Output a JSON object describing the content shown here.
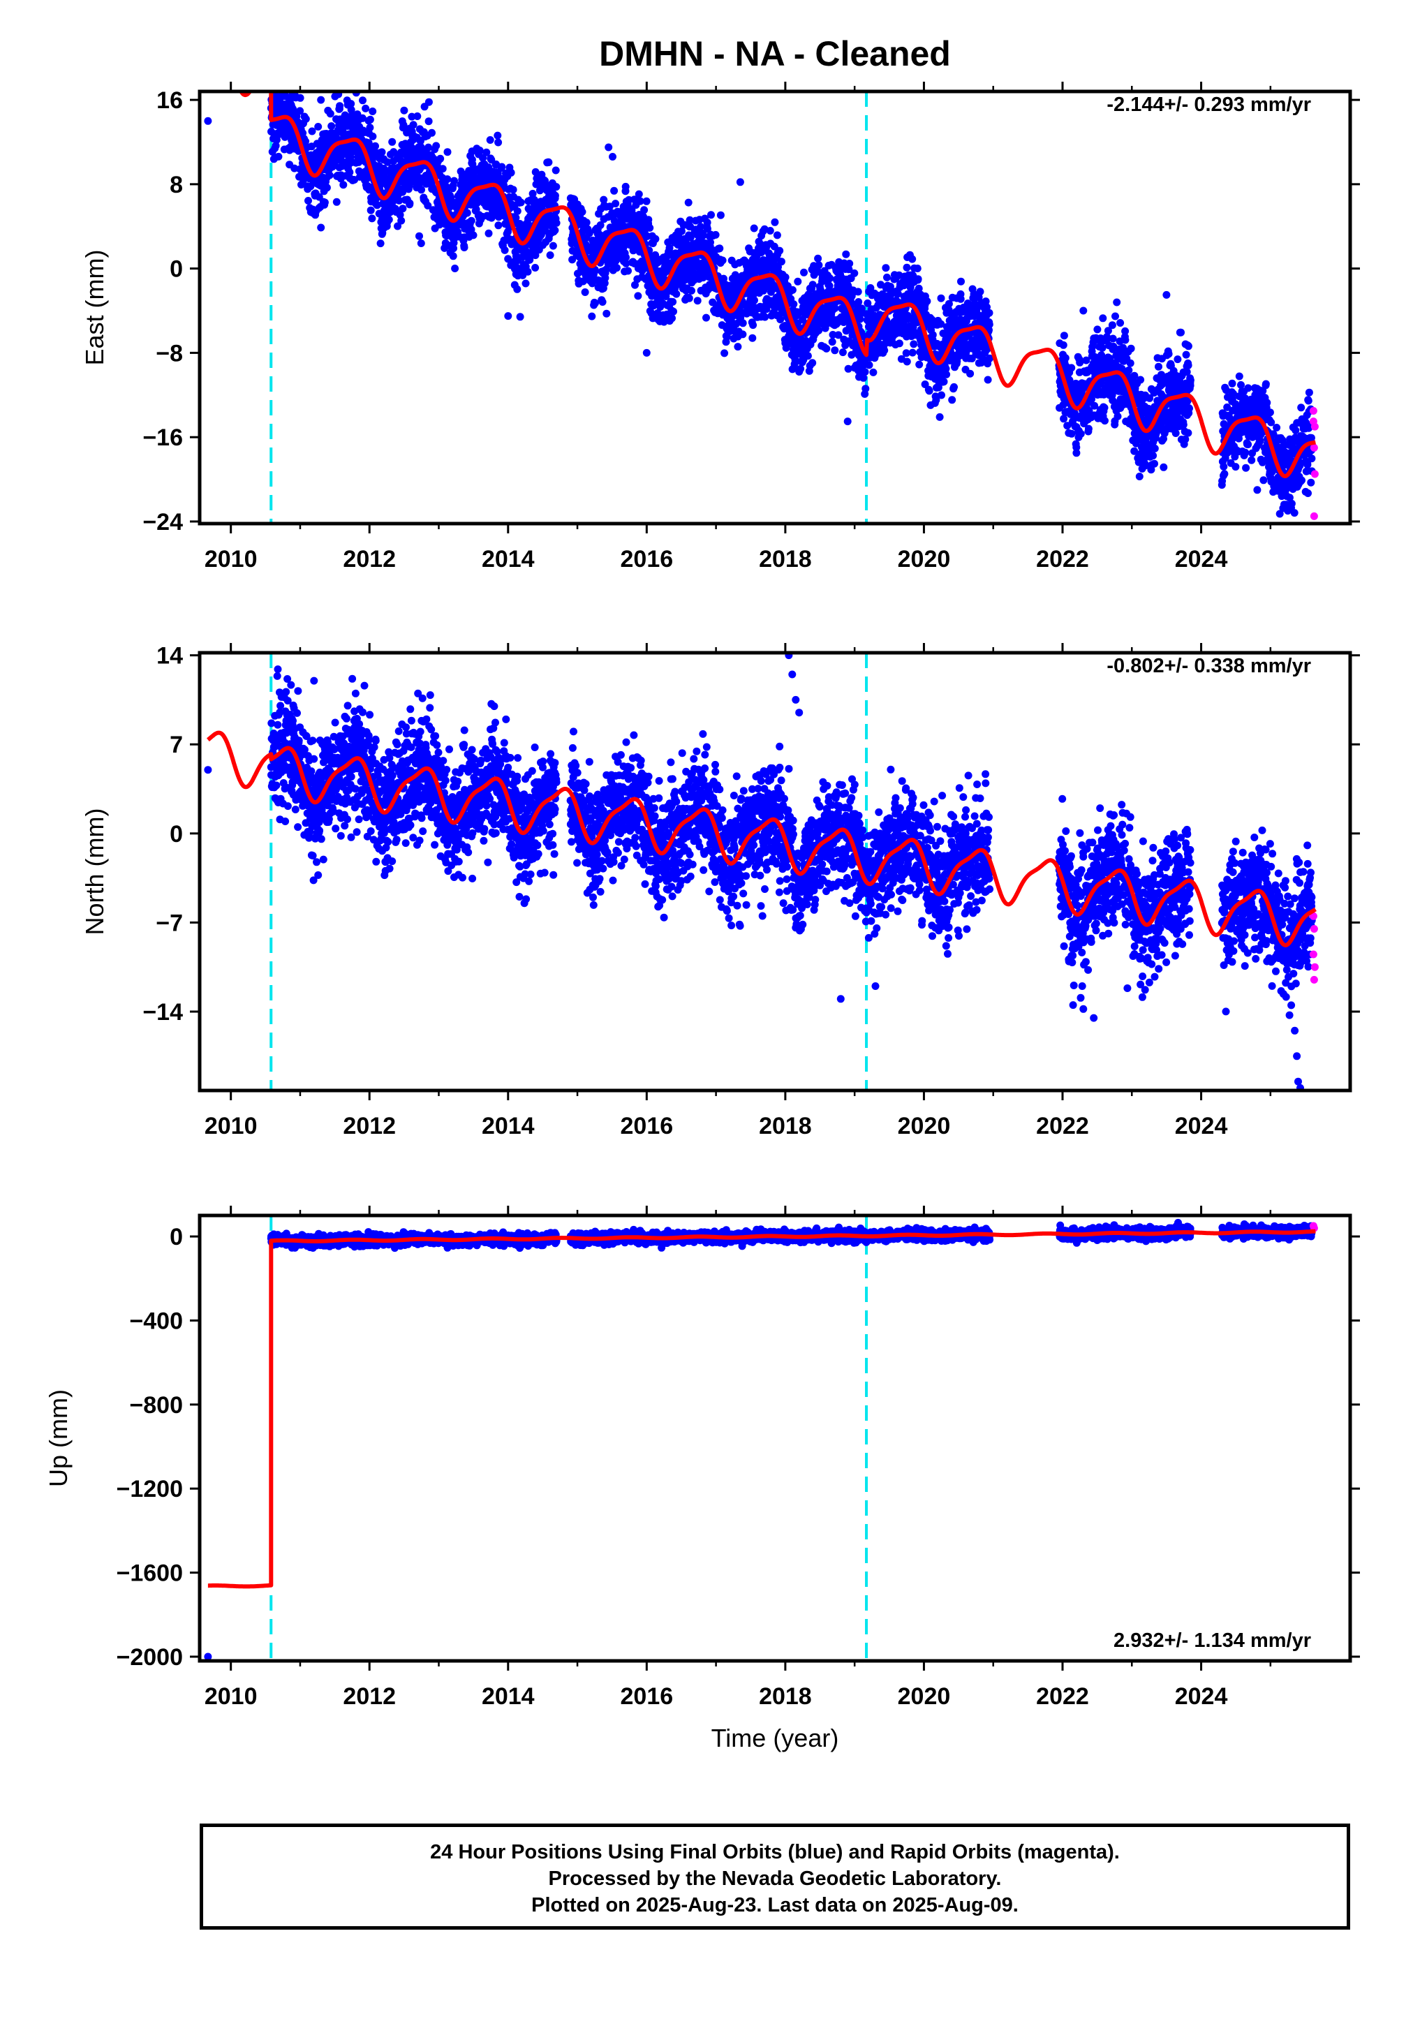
{
  "title": "DMHN  - NA - Cleaned",
  "xlabel": "Time (year)",
  "caption": [
    "24 Hour Positions Using Final Orbits (blue) and Rapid Orbits (magenta).",
    "Processed by the Nevada Geodetic Laboratory.",
    "Plotted on 2025-Aug-23. Last data on 2025-Aug-09."
  ],
  "colors": {
    "final": "#0000ff",
    "rapid": "#ff00ff",
    "model": "#ff0000",
    "offset": "#00e5ee"
  },
  "chart_data": [
    {
      "type": "scatter",
      "name": "east",
      "ylabel": "East (mm)",
      "rate_label": "-2.144+/- 0.293 mm/yr",
      "xlim": [
        2009.55,
        2026.15
      ],
      "ylim": [
        -24.2,
        16.8
      ],
      "xticks": [
        2010,
        2012,
        2014,
        2016,
        2018,
        2020,
        2022,
        2024
      ],
      "xtick_labels": [
        "2010",
        "2012",
        "2014",
        "2016",
        "2018",
        "2020",
        "2022",
        "2024"
      ],
      "yticks": [
        16,
        8,
        0,
        -8,
        -16,
        -24
      ],
      "ytick_labels": [
        "16",
        "8",
        "0",
        "−8",
        "−16",
        "−24"
      ],
      "offsets": [
        2010.58,
        2019.17
      ],
      "data_segments": [
        [
          2010.58,
          2014.7
        ],
        [
          2014.9,
          2020.95
        ],
        [
          2021.95,
          2023.85
        ],
        [
          2024.3,
          2025.6
        ]
      ],
      "first_point": [
        2009.67,
        14.0
      ],
      "model": {
        "t0": 2018.0,
        "intercept": -3.0,
        "rate": -2.144,
        "annual_amp": 2.2,
        "annual_phase": 2010.47,
        "semiannual_amp": 0.6,
        "semiannual_phase": 2010.3,
        "pre_offset_shift": 5.5
      },
      "scatter_sd": 2.0,
      "outliers": [
        [
          2011.3,
          16.0
        ],
        [
          2012.5,
          15.0
        ],
        [
          2014.0,
          -4.5
        ],
        [
          2015.45,
          11.5
        ],
        [
          2016.0,
          -8.0
        ],
        [
          2017.35,
          8.2
        ],
        [
          2018.9,
          -14.5
        ],
        [
          2022.2,
          -17.5
        ],
        [
          2023.5,
          -2.5
        ],
        [
          2022.3,
          -4.0
        ]
      ],
      "rapid_points": [
        [
          2025.62,
          -13.5
        ],
        [
          2025.62,
          -14.5
        ],
        [
          2025.64,
          -15.0
        ],
        [
          2025.63,
          -17.0
        ],
        [
          2025.64,
          -19.5
        ],
        [
          2025.63,
          -23.5
        ]
      ]
    },
    {
      "type": "scatter",
      "name": "north",
      "ylabel": "North (mm)",
      "rate_label": "-0.802+/- 0.338 mm/yr",
      "xlim": [
        2009.55,
        2026.15
      ],
      "ylim": [
        -20.2,
        14.2
      ],
      "xticks": [
        2010,
        2012,
        2014,
        2016,
        2018,
        2020,
        2022,
        2024
      ],
      "xtick_labels": [
        "2010",
        "2012",
        "2014",
        "2016",
        "2018",
        "2020",
        "2022",
        "2024"
      ],
      "yticks": [
        14,
        7,
        0,
        -7,
        -14
      ],
      "ytick_labels": [
        "14",
        "7",
        "0",
        "−7",
        "−14"
      ],
      "offsets": [
        2010.58,
        2019.17
      ],
      "data_segments": [
        [
          2010.58,
          2014.7
        ],
        [
          2014.9,
          2020.95
        ],
        [
          2021.95,
          2023.85
        ],
        [
          2024.3,
          2025.6
        ]
      ],
      "first_point": [
        2009.67,
        5.0
      ],
      "model": {
        "t0": 2018.0,
        "intercept": -0.8,
        "rate": -0.802,
        "annual_amp": 1.8,
        "annual_phase": 2010.5,
        "semiannual_amp": 0.5,
        "semiannual_phase": 2010.3,
        "pre_offset_shift": 0.4
      },
      "scatter_sd": 2.2,
      "outliers": [
        [
          2018.05,
          14.0
        ],
        [
          2018.1,
          12.5
        ],
        [
          2018.15,
          10.5
        ],
        [
          2018.2,
          9.5
        ],
        [
          2011.2,
          12.0
        ],
        [
          2011.8,
          11.0
        ],
        [
          2012.7,
          11.0
        ],
        [
          2013.8,
          10.0
        ],
        [
          2018.8,
          -13.0
        ],
        [
          2019.3,
          -12.0
        ],
        [
          2022.3,
          -13.8
        ],
        [
          2022.45,
          -14.5
        ],
        [
          2025.3,
          -13.5
        ],
        [
          2025.35,
          -15.5
        ],
        [
          2025.38,
          -17.5
        ],
        [
          2025.4,
          -19.5
        ],
        [
          2025.43,
          -20.0
        ]
      ],
      "rapid_points": [
        [
          2025.62,
          -6.5
        ],
        [
          2025.63,
          -7.5
        ],
        [
          2025.62,
          -9.5
        ],
        [
          2025.64,
          -10.5
        ],
        [
          2025.63,
          -11.5
        ]
      ]
    },
    {
      "type": "scatter",
      "name": "up",
      "ylabel": "Up (mm)",
      "rate_label": "2.932+/- 1.134 mm/yr",
      "xlim": [
        2009.55,
        2026.15
      ],
      "ylim": [
        -2020,
        100
      ],
      "xticks": [
        2010,
        2012,
        2014,
        2016,
        2018,
        2020,
        2022,
        2024
      ],
      "xtick_labels": [
        "2010",
        "2012",
        "2014",
        "2016",
        "2018",
        "2020",
        "2022",
        "2024"
      ],
      "yticks": [
        0,
        -400,
        -800,
        -1200,
        -1600,
        -2000
      ],
      "ytick_labels": [
        "0",
        "−400",
        "−800",
        "−1200",
        "−1600",
        "−2000"
      ],
      "offsets": [
        2010.58,
        2019.17
      ],
      "data_segments": [
        [
          2010.58,
          2014.7
        ],
        [
          2014.9,
          2020.95
        ],
        [
          2021.95,
          2023.85
        ],
        [
          2024.3,
          2025.6
        ]
      ],
      "first_point": [
        2009.67,
        -2000
      ],
      "model": {
        "t0": 2018.0,
        "intercept": 0,
        "rate": 2.932,
        "annual_amp": 3,
        "annual_phase": 2010.5,
        "semiannual_amp": 0,
        "semiannual_phase": 2010.3,
        "pre_offset_shift": -1640
      },
      "scatter_sd": 12,
      "outliers": [],
      "rapid_points": [
        [
          2025.62,
          50
        ],
        [
          2025.63,
          40
        ]
      ]
    }
  ]
}
